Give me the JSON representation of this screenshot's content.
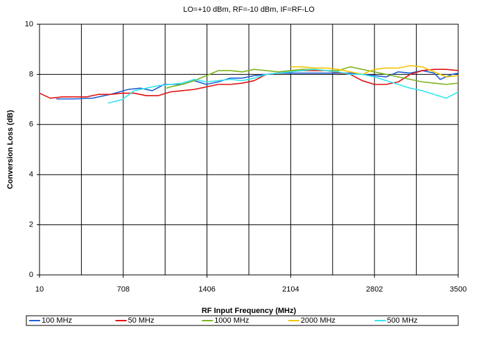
{
  "chart_data": {
    "type": "line",
    "title": "LO=+10 dBm, RF=-10 dBm, IF=RF-LO",
    "x_label": "RF Input Frequency (MHz)",
    "y_label": "Conversion Loss (dB)",
    "xlim": [
      10,
      3500
    ],
    "xticks": [
      10,
      708,
      1406,
      2104,
      2802,
      3500
    ],
    "xminor_ticks": [
      359,
      1057,
      1755,
      2453,
      3151
    ],
    "ylim": [
      0,
      10
    ],
    "yticks": [
      0,
      2,
      4,
      6,
      8,
      10
    ],
    "grid": true,
    "legend": "bottom",
    "series": [
      {
        "name": "100 MHz",
        "color": "#1f5fd6",
        "x": [
          150,
          300,
          450,
          600,
          750,
          850,
          950,
          1050,
          1200,
          1300,
          1400,
          1500,
          1600,
          1700,
          1800,
          1900,
          2000,
          2200,
          2400,
          2600,
          2800,
          2900,
          3000,
          3100,
          3200,
          3300,
          3350,
          3450,
          3500
        ],
        "values": [
          7.02,
          7.02,
          7.05,
          7.2,
          7.4,
          7.45,
          7.35,
          7.6,
          7.6,
          7.75,
          7.6,
          7.7,
          7.85,
          7.85,
          7.95,
          8.0,
          8.05,
          8.05,
          8.05,
          8.05,
          7.95,
          7.9,
          8.1,
          8.05,
          8.15,
          8.05,
          7.8,
          8.0,
          8.05
        ]
      },
      {
        "name": "50 MHz",
        "color": "#e01010",
        "x": [
          10,
          100,
          200,
          300,
          400,
          500,
          600,
          700,
          800,
          900,
          1000,
          1100,
          1200,
          1300,
          1400,
          1500,
          1600,
          1700,
          1800,
          1900,
          2000,
          2200,
          2400,
          2600,
          2700,
          2800,
          2900,
          3000,
          3100,
          3200,
          3300,
          3400,
          3500
        ],
        "values": [
          7.25,
          7.05,
          7.1,
          7.1,
          7.1,
          7.2,
          7.2,
          7.25,
          7.25,
          7.15,
          7.15,
          7.3,
          7.35,
          7.4,
          7.5,
          7.6,
          7.6,
          7.65,
          7.75,
          8.0,
          8.05,
          8.15,
          8.15,
          8.0,
          7.75,
          7.6,
          7.6,
          7.7,
          8.0,
          8.15,
          8.2,
          8.2,
          8.15
        ]
      },
      {
        "name": "1000 MHz",
        "color": "#7ab51d",
        "x": [
          1067,
          1100,
          1200,
          1300,
          1400,
          1500,
          1600,
          1700,
          1800,
          1900,
          2000,
          2100,
          2200,
          2300,
          2400,
          2500,
          2600,
          2700,
          2800,
          2900,
          3000,
          3100,
          3200,
          3300,
          3400,
          3500
        ],
        "values": [
          7.45,
          7.5,
          7.6,
          7.75,
          7.95,
          8.15,
          8.15,
          8.1,
          8.2,
          8.15,
          8.1,
          8.15,
          8.2,
          8.2,
          8.15,
          8.15,
          8.3,
          8.2,
          8.1,
          8.0,
          7.9,
          7.8,
          7.7,
          7.65,
          7.6,
          7.65
        ]
      },
      {
        "name": "2000 MHz",
        "color": "#f2c500",
        "x": [
          2104,
          2200,
          2300,
          2400,
          2500,
          2600,
          2700,
          2800,
          2900,
          3000,
          3100,
          3200,
          3300,
          3400,
          3500
        ],
        "values": [
          8.3,
          8.3,
          8.25,
          8.25,
          8.2,
          8.1,
          8.0,
          8.2,
          8.25,
          8.25,
          8.35,
          8.3,
          8.1,
          7.9,
          7.95
        ]
      },
      {
        "name": "500 MHz",
        "color": "#33e5f0",
        "x": [
          580,
          700,
          800,
          900,
          1000,
          1100,
          1200,
          1300,
          1400,
          1500,
          1600,
          1700,
          1800,
          1900,
          2000,
          2100,
          2200,
          2300,
          2400,
          2500,
          2600,
          2700,
          2800,
          2900,
          3000,
          3100,
          3200,
          3300,
          3400,
          3500
        ],
        "values": [
          6.85,
          7.0,
          7.35,
          7.45,
          7.55,
          7.6,
          7.65,
          7.8,
          7.7,
          7.75,
          7.8,
          7.75,
          7.85,
          8.0,
          8.05,
          8.1,
          8.15,
          8.2,
          8.15,
          8.1,
          8.0,
          8.0,
          7.9,
          7.75,
          7.6,
          7.45,
          7.35,
          7.2,
          7.05,
          7.3
        ]
      }
    ]
  }
}
